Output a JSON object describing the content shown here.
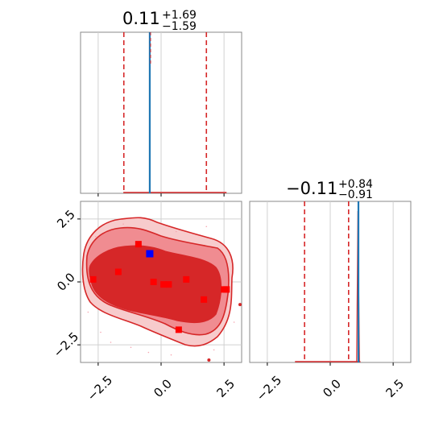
{
  "chart_data": {
    "type": "corner",
    "axis_ticks": [
      "−2.5",
      "0.0",
      "2.5"
    ],
    "tick_values": [
      -2.5,
      0.0,
      2.5
    ],
    "range": [
      -3.2,
      3.2
    ],
    "grid": true,
    "colors": {
      "hist": "#d62728",
      "marker_line": "#1f77b4",
      "dashed": "#d62728",
      "contour_dark": "#d62728",
      "contour_light": "#f08c91",
      "blue_point": "#0000ff",
      "red_point": "#ff0000"
    },
    "param1": {
      "title_value": "0.11",
      "title_upper": "+1.69",
      "title_lower": "−1.59",
      "quantiles": [
        -1.48,
        0.11,
        1.8
      ],
      "marker": -0.45,
      "hist_peak": 0.02
    },
    "param2": {
      "title_value": "−0.11",
      "title_upper": "+0.84",
      "title_lower": "−0.91",
      "quantiles": [
        -1.02,
        -0.11,
        0.73
      ],
      "marker": 1.12,
      "hist_peak": 0.03
    },
    "joint": {
      "blue_point": [
        -0.45,
        1.12
      ],
      "red_points": [
        [
          -2.7,
          0.1
        ],
        [
          -1.7,
          0.4
        ],
        [
          -0.9,
          1.5
        ],
        [
          -0.3,
          0.0
        ],
        [
          0.1,
          -0.1
        ],
        [
          0.3,
          -0.1
        ],
        [
          1.0,
          0.1
        ],
        [
          1.7,
          -0.7
        ],
        [
          0.7,
          -1.9
        ],
        [
          2.5,
          -0.3
        ],
        [
          2.6,
          -0.3
        ]
      ]
    }
  }
}
